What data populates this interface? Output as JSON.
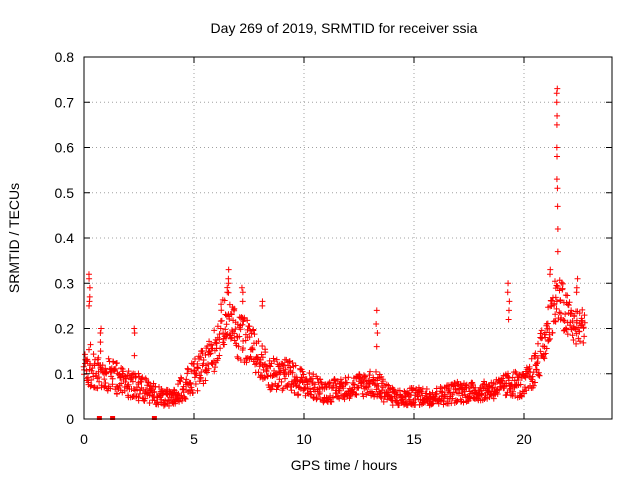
{
  "colors": {
    "series": "#ff0000",
    "grid": "#a0a0a0",
    "axis": "#000000"
  },
  "chart_data": {
    "type": "scatter",
    "title": "Day 269 of 2019, SRMTID for receiver ssia",
    "xlabel": "GPS time / hours",
    "ylabel": "SRMTID / TECUs",
    "xlim": [
      0,
      24
    ],
    "ylim": [
      0,
      0.8
    ],
    "grid": true,
    "marker": "+",
    "x_ticks": [
      0,
      5,
      10,
      15,
      20
    ],
    "x_tick_labels": [
      "0",
      "5",
      "10",
      "15",
      "20"
    ],
    "y_ticks": [
      0,
      0.1,
      0.2,
      0.3,
      0.4,
      0.5,
      0.6,
      0.7,
      0.8
    ],
    "y_tick_labels": [
      "0",
      "0.1",
      "0.2",
      "0.3",
      "0.4",
      "0.5",
      "0.6",
      "0.7",
      "0.8"
    ],
    "series": [
      {
        "name": "SRMTID",
        "sample_every_hours": 0.05,
        "envelope": {
          "x": [
            0,
            0.2,
            0.4,
            0.8,
            1.2,
            1.8,
            2.5,
            3.0,
            3.5,
            4.0,
            4.5,
            5.0,
            5.5,
            6.0,
            6.5,
            7.0,
            7.5,
            8.0,
            8.5,
            9.0,
            9.5,
            10.0,
            11.0,
            12.0,
            13.0,
            13.5,
            14.0,
            14.5,
            15.0,
            16.0,
            17.0,
            18.0,
            19.0,
            19.5,
            20.0,
            20.5,
            21.0,
            21.3,
            21.6,
            22.0,
            22.4,
            22.8
          ],
          "y": [
            0.1,
            0.12,
            0.11,
            0.09,
            0.1,
            0.08,
            0.07,
            0.06,
            0.05,
            0.04,
            0.07,
            0.09,
            0.12,
            0.16,
            0.24,
            0.18,
            0.17,
            0.13,
            0.1,
            0.1,
            0.09,
            0.08,
            0.06,
            0.07,
            0.08,
            0.07,
            0.05,
            0.045,
            0.05,
            0.05,
            0.06,
            0.06,
            0.07,
            0.08,
            0.07,
            0.11,
            0.18,
            0.25,
            0.26,
            0.22,
            0.2,
            0.21
          ],
          "spread": [
            0.04,
            0.05,
            0.05,
            0.03,
            0.04,
            0.03,
            0.03,
            0.025,
            0.02,
            0.02,
            0.03,
            0.04,
            0.04,
            0.05,
            0.06,
            0.05,
            0.05,
            0.04,
            0.04,
            0.04,
            0.035,
            0.03,
            0.025,
            0.025,
            0.03,
            0.03,
            0.02,
            0.02,
            0.02,
            0.02,
            0.025,
            0.02,
            0.025,
            0.03,
            0.03,
            0.04,
            0.05,
            0.06,
            0.06,
            0.05,
            0.04,
            0.04
          ]
        },
        "spikes": [
          {
            "x": 0.25,
            "values": [
              0.32,
              0.31,
              0.29,
              0.27,
              0.26,
              0.25
            ]
          },
          {
            "x": 0.75,
            "values": [
              0.2,
              0.19,
              0.17,
              0.15
            ]
          },
          {
            "x": 2.3,
            "values": [
              0.2,
              0.19,
              0.14
            ]
          },
          {
            "x": 6.55,
            "values": [
              0.33,
              0.31,
              0.3,
              0.28
            ]
          },
          {
            "x": 7.2,
            "values": [
              0.29,
              0.28,
              0.26
            ]
          },
          {
            "x": 8.1,
            "values": [
              0.26,
              0.25
            ]
          },
          {
            "x": 13.3,
            "values": [
              0.24,
              0.21,
              0.19,
              0.16
            ]
          },
          {
            "x": 19.3,
            "values": [
              0.3,
              0.28,
              0.26,
              0.24,
              0.22
            ]
          },
          {
            "x": 21.2,
            "values": [
              0.33,
              0.32
            ]
          },
          {
            "x": 21.5,
            "values": [
              0.73,
              0.72,
              0.7,
              0.67,
              0.65,
              0.6,
              0.58,
              0.53,
              0.51,
              0.47,
              0.42,
              0.37
            ]
          },
          {
            "x": 22.4,
            "values": [
              0.31,
              0.29,
              0.28
            ]
          }
        ],
        "zero_markers_x": [
          0.7,
          1.3,
          3.2
        ]
      }
    ]
  }
}
